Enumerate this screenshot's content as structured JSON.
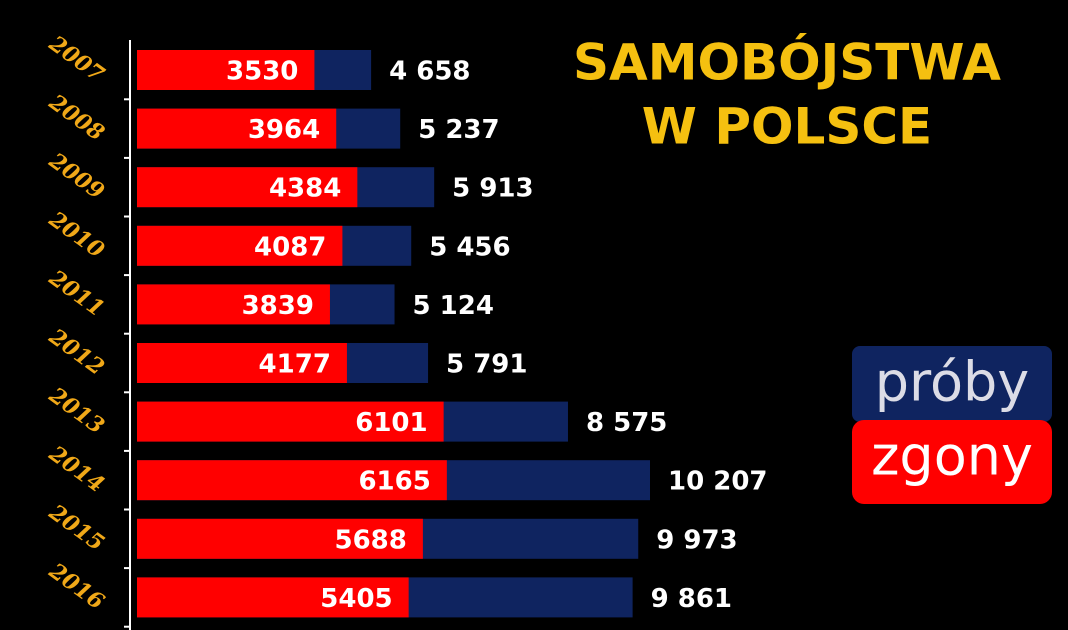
{
  "chart_data": {
    "type": "bar",
    "orientation": "horizontal",
    "overlap": true,
    "title_lines": [
      "SAMOBÓJSTWA",
      "W POLSCE"
    ],
    "categories": [
      "2007",
      "2008",
      "2009",
      "2010",
      "2011",
      "2012",
      "2013",
      "2014",
      "2015",
      "2016"
    ],
    "series": [
      {
        "name": "próby",
        "color": "#0f2460",
        "values": [
          4658,
          5237,
          5913,
          5456,
          5124,
          5791,
          8575,
          10207,
          9973,
          9861
        ],
        "value_labels": [
          "4 658",
          "5 237",
          "5 913",
          "5 456",
          "5 124",
          "5 791",
          "8 575",
          "10 207",
          "9 973",
          "9 861"
        ]
      },
      {
        "name": "zgony",
        "color": "#ff0000",
        "values": [
          3530,
          3964,
          4384,
          4087,
          3839,
          4177,
          6101,
          6165,
          5688,
          5405
        ]
      }
    ]
  }
}
